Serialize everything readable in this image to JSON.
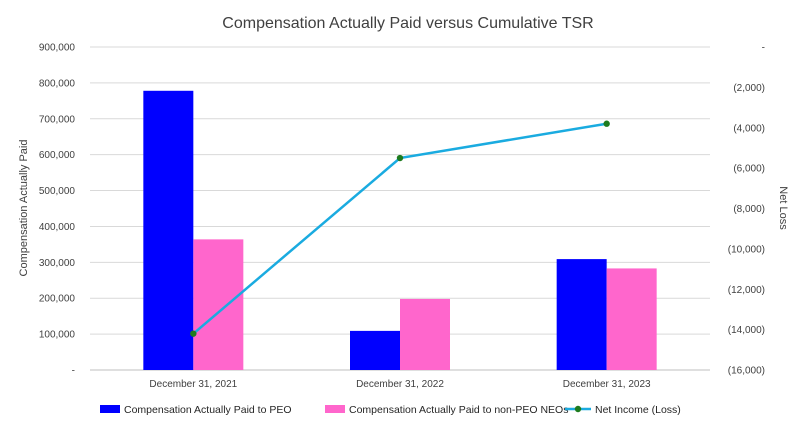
{
  "chart_data": {
    "type": "bar",
    "title": "Compensation Actually Paid versus Cumulative TSR",
    "categories": [
      "December 31, 2021",
      "December 31, 2022",
      "December 31, 2023"
    ],
    "series": [
      {
        "name": "Compensation Actually Paid  to PEO",
        "kind": "bar",
        "axis": "left",
        "color": "#0000FF",
        "values": [
          778000,
          109000,
          309000
        ]
      },
      {
        "name": "Compensation Actually Paid to non-PEO NEOs",
        "kind": "bar",
        "axis": "left",
        "color": "#FF66CC",
        "values": [
          364000,
          198000,
          283000
        ]
      },
      {
        "name": "Net Income (Loss)",
        "kind": "line",
        "axis": "right",
        "color": "#1AABE0",
        "marker_color": "#1E7B1E",
        "values": [
          -14200,
          -5500,
          -3800
        ]
      }
    ],
    "y_left": {
      "label": "Compensation Actually Paid",
      "lim": [
        0,
        900000
      ],
      "ticks": [
        0,
        100000,
        200000,
        300000,
        400000,
        500000,
        600000,
        700000,
        800000,
        900000
      ],
      "tick_labels": [
        "-",
        "100,000",
        "200,000",
        "300,000",
        "400,000",
        "500,000",
        "600,000",
        "700,000",
        "800,000",
        "900,000"
      ]
    },
    "y_right": {
      "label": "Net Loss",
      "lim": [
        -16000,
        0
      ],
      "ticks": [
        0,
        -2000,
        -4000,
        -6000,
        -8000,
        -10000,
        -12000,
        -14000,
        -16000
      ],
      "tick_labels": [
        "-",
        "(2,000)",
        "(4,000)",
        "(6,000)",
        "(8,000)",
        "(10,000)",
        "(12,000)",
        "(14,000)",
        "(16,000)"
      ]
    },
    "grid": true,
    "legend_position": "bottom"
  }
}
